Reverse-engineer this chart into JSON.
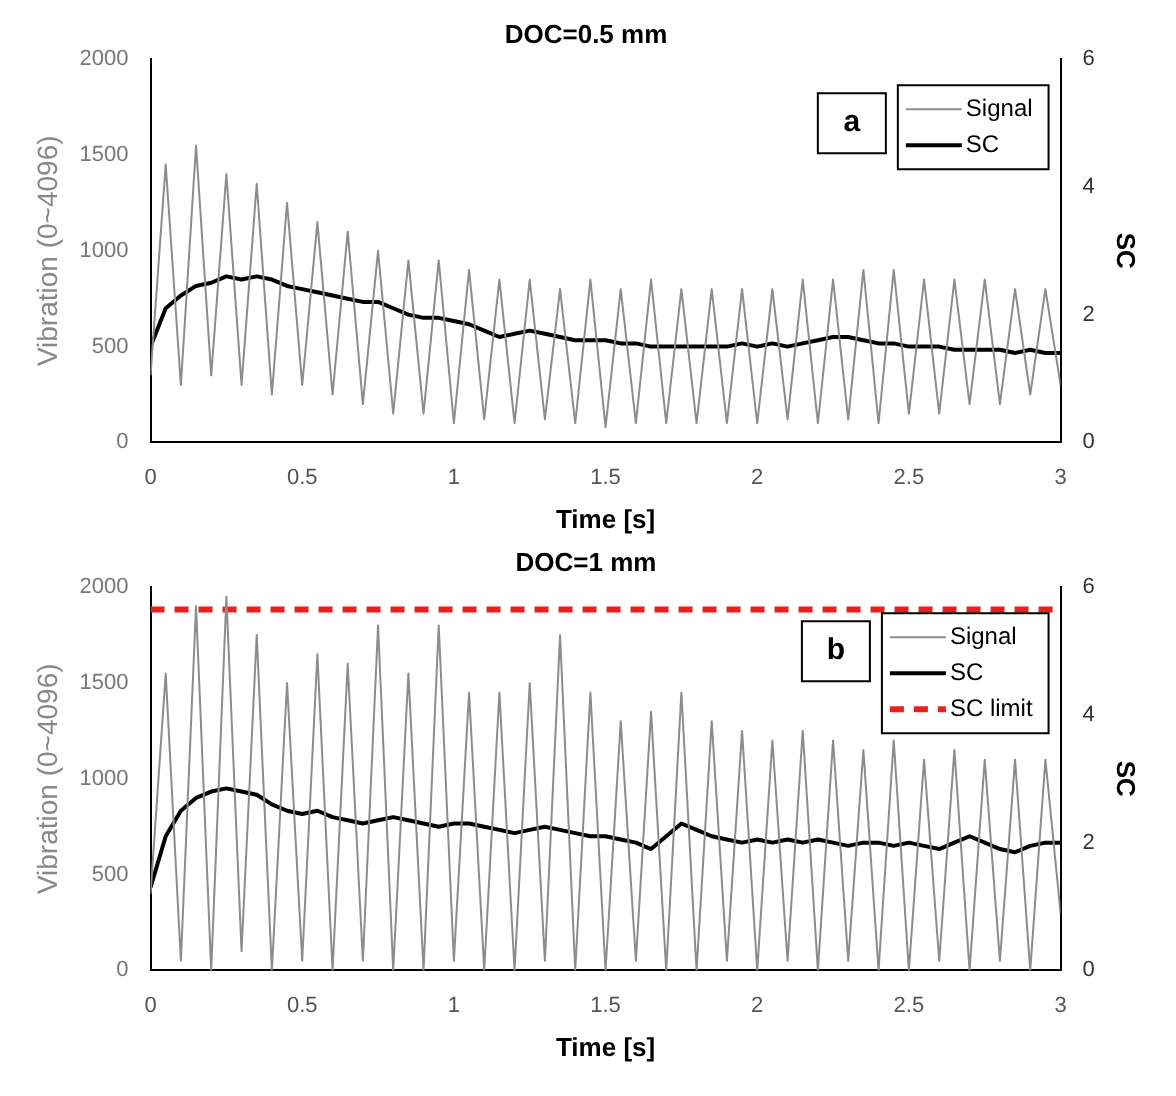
{
  "chart_data": [
    {
      "type": "line",
      "title": "DOC=0.5 mm",
      "xlabel": "Time [s]",
      "ylabel": "Vibration (0~4096)",
      "y2label": "SC",
      "legend": "top right",
      "annotations": [
        "a"
      ],
      "x": [
        0,
        0.05,
        0.1,
        0.15,
        0.2,
        0.25,
        0.3,
        0.35,
        0.4,
        0.45,
        0.5,
        0.55,
        0.6,
        0.65,
        0.7,
        0.75,
        0.8,
        0.85,
        0.9,
        0.95,
        1,
        1.05,
        1.1,
        1.15,
        1.2,
        1.25,
        1.3,
        1.35,
        1.4,
        1.45,
        1.5,
        1.55,
        1.6,
        1.65,
        1.7,
        1.75,
        1.8,
        1.85,
        1.9,
        1.95,
        2,
        2.05,
        2.1,
        2.15,
        2.2,
        2.25,
        2.3,
        2.35,
        2.4,
        2.45,
        2.5,
        2.55,
        2.6,
        2.65,
        2.7,
        2.75,
        2.8,
        2.85,
        2.9,
        2.95,
        3
      ],
      "series": [
        {
          "name": "Signal",
          "color": "#8c8c8c",
          "values": [
            350,
            1450,
            300,
            1550,
            350,
            1400,
            300,
            1350,
            250,
            1250,
            300,
            1150,
            250,
            1100,
            200,
            1000,
            150,
            950,
            150,
            950,
            100,
            900,
            120,
            850,
            100,
            850,
            120,
            800,
            100,
            850,
            80,
            800,
            100,
            850,
            100,
            800,
            100,
            800,
            100,
            800,
            100,
            800,
            120,
            850,
            100,
            850,
            120,
            900,
            100,
            900,
            150,
            850,
            150,
            850,
            200,
            850,
            200,
            800,
            250,
            800,
            300
          ]
        },
        {
          "name": "SC",
          "color": "#000000",
          "axis": "y2",
          "values": [
            1.5,
            2.1,
            2.3,
            2.45,
            2.5,
            2.6,
            2.55,
            2.6,
            2.55,
            2.45,
            2.4,
            2.35,
            2.3,
            2.25,
            2.2,
            2.2,
            2.1,
            2.0,
            1.95,
            1.95,
            1.9,
            1.85,
            1.75,
            1.65,
            1.7,
            1.75,
            1.7,
            1.65,
            1.6,
            1.6,
            1.6,
            1.55,
            1.55,
            1.5,
            1.5,
            1.5,
            1.5,
            1.5,
            1.5,
            1.55,
            1.5,
            1.55,
            1.5,
            1.55,
            1.6,
            1.65,
            1.65,
            1.6,
            1.55,
            1.55,
            1.5,
            1.5,
            1.5,
            1.45,
            1.45,
            1.45,
            1.45,
            1.4,
            1.45,
            1.4,
            1.4
          ]
        }
      ],
      "xlim": [
        0,
        3
      ],
      "xticks": [
        0,
        0.5,
        1,
        1.5,
        2,
        2.5,
        3
      ],
      "ylim": [
        0,
        2000
      ],
      "yticks": [
        0,
        500,
        1000,
        1500,
        2000
      ],
      "y2lim": [
        0,
        6
      ],
      "y2ticks": [
        0,
        2,
        4,
        6
      ]
    },
    {
      "type": "line",
      "title": "DOC=1 mm",
      "xlabel": "Time [s]",
      "ylabel": "Vibration (0~4096)",
      "y2label": "SC",
      "legend": "top right",
      "annotations": [
        "b"
      ],
      "x": [
        0,
        0.05,
        0.1,
        0.15,
        0.2,
        0.25,
        0.3,
        0.35,
        0.4,
        0.45,
        0.5,
        0.55,
        0.6,
        0.65,
        0.7,
        0.75,
        0.8,
        0.85,
        0.9,
        0.95,
        1,
        1.05,
        1.1,
        1.15,
        1.2,
        1.25,
        1.3,
        1.35,
        1.4,
        1.45,
        1.5,
        1.55,
        1.6,
        1.65,
        1.7,
        1.75,
        1.8,
        1.85,
        1.9,
        1.95,
        2,
        2.05,
        2.1,
        2.15,
        2.2,
        2.25,
        2.3,
        2.35,
        2.4,
        2.45,
        2.5,
        2.55,
        2.6,
        2.65,
        2.7,
        2.75,
        2.8,
        2.85,
        2.9,
        2.95,
        3
      ],
      "series": [
        {
          "name": "Signal",
          "color": "#8c8c8c",
          "values": [
            400,
            1550,
            50,
            1900,
            0,
            1950,
            100,
            1750,
            0,
            1500,
            50,
            1650,
            0,
            1600,
            50,
            1800,
            0,
            1550,
            0,
            1800,
            50,
            1450,
            0,
            1450,
            0,
            1500,
            50,
            1750,
            0,
            1450,
            0,
            1300,
            50,
            1350,
            0,
            1450,
            0,
            1300,
            50,
            1250,
            0,
            1200,
            50,
            1250,
            0,
            1200,
            50,
            1150,
            0,
            1200,
            0,
            1100,
            50,
            1150,
            0,
            1100,
            50,
            1100,
            0,
            1100,
            300
          ]
        },
        {
          "name": "SC",
          "color": "#000000",
          "axis": "y2",
          "values": [
            1.3,
            2.1,
            2.5,
            2.7,
            2.8,
            2.85,
            2.8,
            2.75,
            2.6,
            2.5,
            2.45,
            2.5,
            2.4,
            2.35,
            2.3,
            2.35,
            2.4,
            2.35,
            2.3,
            2.25,
            2.3,
            2.3,
            2.25,
            2.2,
            2.15,
            2.2,
            2.25,
            2.2,
            2.15,
            2.1,
            2.1,
            2.05,
            2.0,
            1.9,
            2.1,
            2.3,
            2.2,
            2.1,
            2.05,
            2.0,
            2.05,
            2.0,
            2.05,
            2.0,
            2.05,
            2.0,
            1.95,
            2.0,
            2.0,
            1.95,
            2.0,
            1.95,
            1.9,
            2.0,
            2.1,
            2.0,
            1.9,
            1.85,
            1.95,
            2.0,
            2.0
          ]
        }
      ],
      "ref_lines": [
        {
          "axis": "y2",
          "value": 5.65,
          "label": "SC limit",
          "color": "#e8201c",
          "line_style": "dashed"
        }
      ],
      "xlim": [
        0,
        3
      ],
      "xticks": [
        0,
        0.5,
        1,
        1.5,
        2,
        2.5,
        3
      ],
      "ylim": [
        0,
        2000
      ],
      "yticks": [
        0,
        500,
        1000,
        1500,
        2000
      ],
      "y2lim": [
        0,
        6
      ],
      "y2ticks": [
        0,
        2,
        4,
        6
      ]
    }
  ]
}
